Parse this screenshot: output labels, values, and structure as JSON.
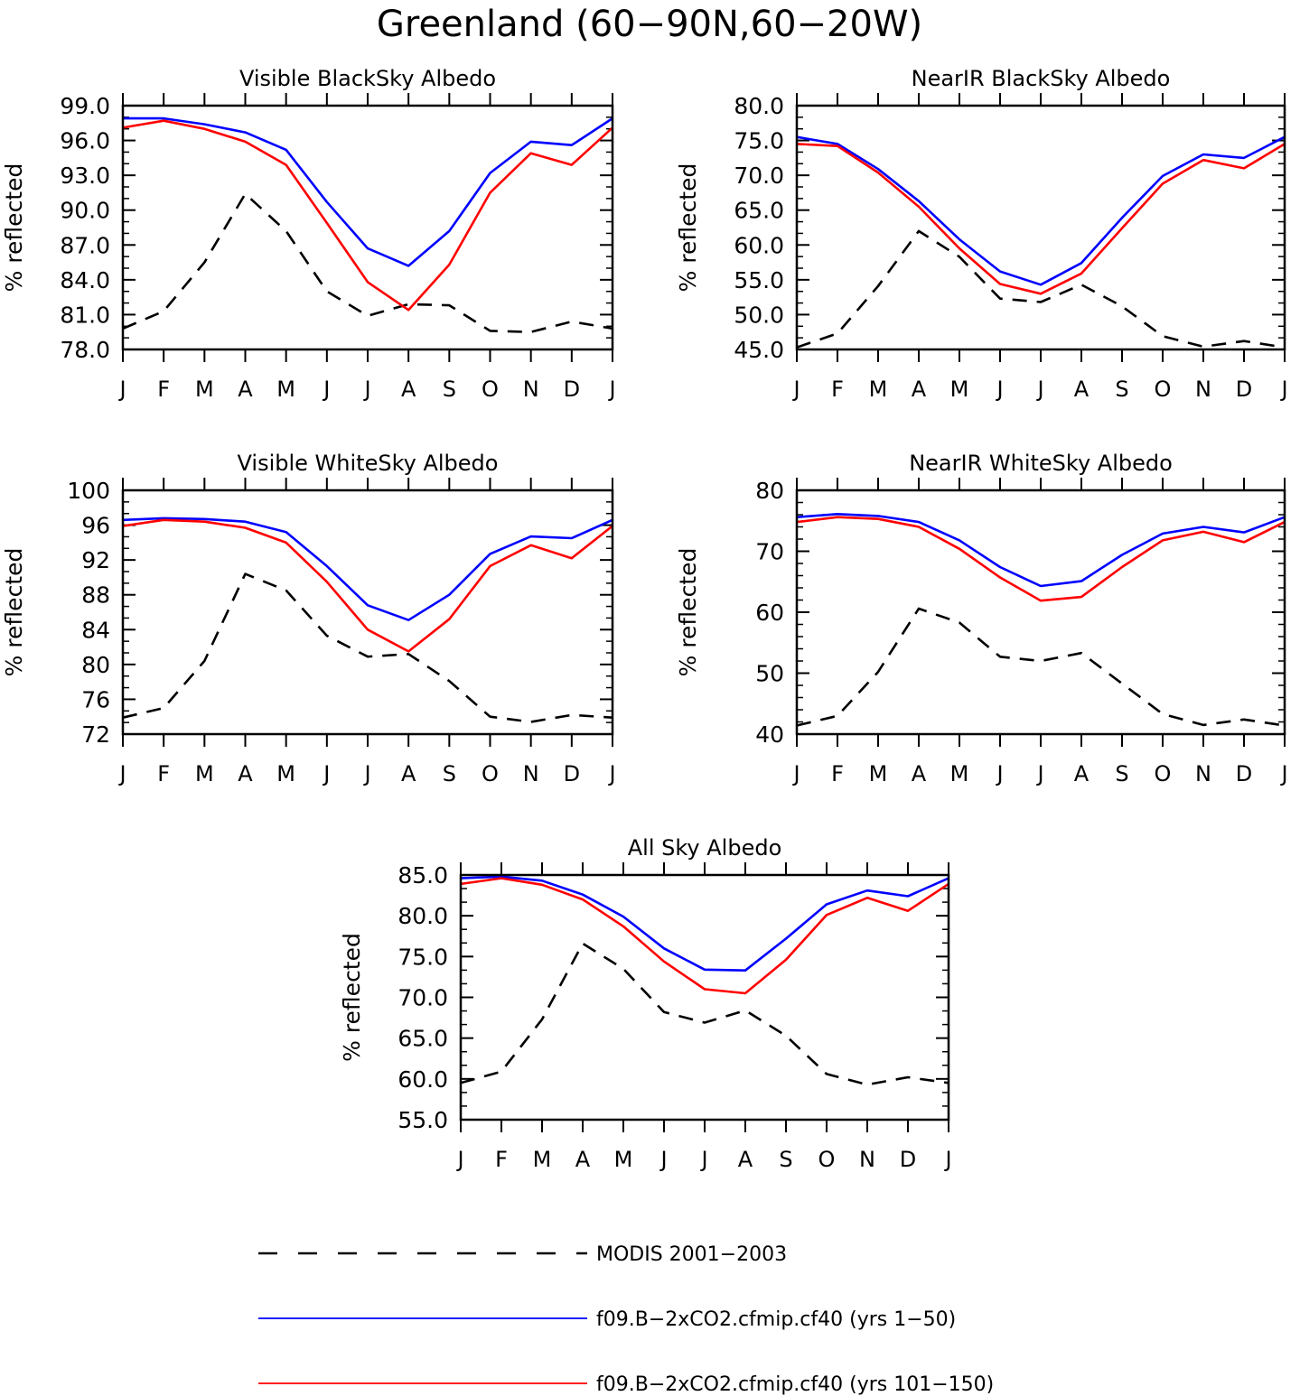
{
  "figure": {
    "title": "Greenland (60−90N,60−20W)"
  },
  "legend": {
    "entries": [
      {
        "label": "MODIS 2001−2003",
        "color": "#000000",
        "dash": true
      },
      {
        "label": "f09.B−2xCO2.cfmip.cf40 (yrs 1−50)",
        "color": "#0000ff",
        "dash": false
      },
      {
        "label": "f09.B−2xCO2.cfmip.cf40 (yrs 101−150)",
        "color": "#ff0000",
        "dash": false
      }
    ]
  },
  "chart_data": [
    {
      "type": "line",
      "title": "Visible BlackSky Albedo",
      "ylabel": "% reflected",
      "categories": [
        "J",
        "F",
        "M",
        "A",
        "M",
        "J",
        "J",
        "A",
        "S",
        "O",
        "N",
        "D",
        "J"
      ],
      "ylim": [
        78,
        99
      ],
      "yticks": [
        "78.0",
        "81.0",
        "84.0",
        "87.0",
        "90.0",
        "93.0",
        "96.0",
        "99.0"
      ],
      "series": [
        {
          "color": "#000000",
          "dash": true,
          "values": [
            79.8,
            81.3,
            85.5,
            91.4,
            88.2,
            83.0,
            80.9,
            81.9,
            81.8,
            79.6,
            79.5,
            80.4,
            79.8
          ]
        },
        {
          "color": "#0000ff",
          "dash": false,
          "values": [
            97.9,
            97.9,
            97.4,
            96.7,
            95.2,
            90.7,
            86.7,
            85.2,
            88.2,
            93.2,
            95.9,
            95.6,
            97.9
          ]
        },
        {
          "color": "#ff0000",
          "dash": false,
          "values": [
            97.1,
            97.7,
            97.0,
            95.9,
            93.9,
            88.9,
            83.8,
            81.4,
            85.3,
            91.5,
            94.9,
            93.9,
            97.1
          ]
        }
      ]
    },
    {
      "type": "line",
      "title": "NearIR BlackSky Albedo",
      "ylabel": "% reflected",
      "categories": [
        "J",
        "F",
        "M",
        "A",
        "M",
        "J",
        "J",
        "A",
        "S",
        "O",
        "N",
        "D",
        "J"
      ],
      "ylim": [
        45,
        80
      ],
      "yticks": [
        "45.0",
        "50.0",
        "55.0",
        "60.0",
        "65.0",
        "70.0",
        "75.0",
        "80.0"
      ],
      "series": [
        {
          "color": "#000000",
          "dash": true,
          "values": [
            45.3,
            47.3,
            54.1,
            62.0,
            58.3,
            52.3,
            51.8,
            54.3,
            51.2,
            46.9,
            45.4,
            46.2,
            45.3
          ]
        },
        {
          "color": "#0000ff",
          "dash": false,
          "values": [
            75.5,
            74.5,
            70.9,
            66.3,
            60.8,
            56.2,
            54.3,
            57.4,
            63.9,
            69.9,
            73.0,
            72.5,
            75.5
          ]
        },
        {
          "color": "#ff0000",
          "dash": false,
          "values": [
            74.5,
            74.2,
            70.4,
            65.5,
            59.5,
            54.4,
            53.0,
            55.9,
            62.4,
            68.8,
            72.2,
            71.0,
            74.5
          ]
        }
      ]
    },
    {
      "type": "line",
      "title": "Visible WhiteSky Albedo",
      "ylabel": "% reflected",
      "categories": [
        "J",
        "F",
        "M",
        "A",
        "M",
        "J",
        "J",
        "A",
        "S",
        "O",
        "N",
        "D",
        "J"
      ],
      "ylim": [
        72,
        100
      ],
      "yticks": [
        "72",
        "76",
        "80",
        "84",
        "88",
        "92",
        "96",
        "100"
      ],
      "series": [
        {
          "color": "#000000",
          "dash": true,
          "values": [
            73.9,
            75.0,
            80.4,
            90.4,
            88.5,
            83.3,
            80.9,
            81.2,
            78.1,
            74.0,
            73.4,
            74.2,
            73.9
          ]
        },
        {
          "color": "#0000ff",
          "dash": false,
          "values": [
            96.6,
            96.8,
            96.7,
            96.4,
            95.2,
            91.3,
            86.8,
            85.1,
            88.0,
            92.7,
            94.7,
            94.5,
            96.6
          ]
        },
        {
          "color": "#ff0000",
          "dash": false,
          "values": [
            95.9,
            96.6,
            96.4,
            95.7,
            94.0,
            89.5,
            84.0,
            81.5,
            85.2,
            91.3,
            93.7,
            92.2,
            95.9
          ]
        }
      ]
    },
    {
      "type": "line",
      "title": "NearIR WhiteSky Albedo",
      "ylabel": "% reflected",
      "categories": [
        "J",
        "F",
        "M",
        "A",
        "M",
        "J",
        "J",
        "A",
        "S",
        "O",
        "N",
        "D",
        "J"
      ],
      "ylim": [
        40,
        80
      ],
      "yticks": [
        "40",
        "50",
        "60",
        "70",
        "80"
      ],
      "series": [
        {
          "color": "#000000",
          "dash": true,
          "values": [
            41.4,
            43.0,
            50.2,
            60.6,
            58.3,
            52.7,
            52.0,
            53.3,
            48.3,
            43.3,
            41.5,
            42.4,
            41.4
          ]
        },
        {
          "color": "#0000ff",
          "dash": false,
          "values": [
            75.6,
            76.1,
            75.8,
            74.8,
            71.8,
            67.4,
            64.3,
            65.1,
            69.4,
            72.9,
            74.0,
            73.1,
            75.6
          ]
        },
        {
          "color": "#ff0000",
          "dash": false,
          "values": [
            74.8,
            75.6,
            75.3,
            74.0,
            70.4,
            65.7,
            61.9,
            62.5,
            67.4,
            71.8,
            73.2,
            71.5,
            74.8
          ]
        }
      ]
    },
    {
      "type": "line",
      "title": "All Sky Albedo",
      "ylabel": "% reflected",
      "categories": [
        "J",
        "F",
        "M",
        "A",
        "M",
        "J",
        "J",
        "A",
        "S",
        "O",
        "N",
        "D",
        "J"
      ],
      "ylim": [
        55,
        85
      ],
      "yticks": [
        "55.0",
        "60.0",
        "65.0",
        "70.0",
        "75.0",
        "80.0",
        "85.0"
      ],
      "series": [
        {
          "color": "#000000",
          "dash": true,
          "values": [
            59.5,
            60.9,
            67.3,
            76.6,
            73.5,
            68.2,
            66.9,
            68.4,
            65.3,
            60.6,
            59.3,
            60.2,
            59.5
          ]
        },
        {
          "color": "#0000ff",
          "dash": false,
          "values": [
            84.6,
            84.8,
            84.3,
            82.6,
            79.9,
            76.0,
            73.4,
            73.3,
            77.2,
            81.4,
            83.1,
            82.4,
            84.6
          ]
        },
        {
          "color": "#ff0000",
          "dash": false,
          "values": [
            83.9,
            84.6,
            83.8,
            82.0,
            78.7,
            74.4,
            71.0,
            70.5,
            74.6,
            80.1,
            82.2,
            80.6,
            83.9
          ]
        }
      ]
    }
  ]
}
